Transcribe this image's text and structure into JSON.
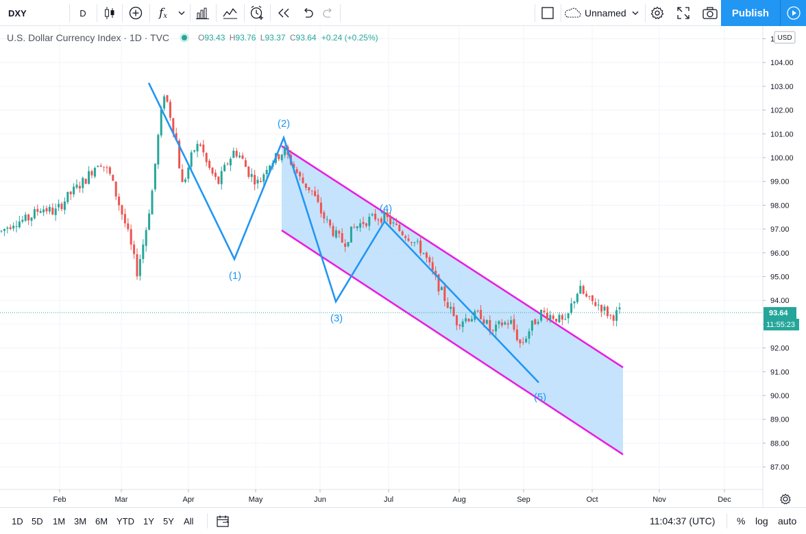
{
  "toolbar": {
    "symbol": "DXY",
    "interval": "D",
    "layout_name": "Unnamed",
    "publish_label": "Publish",
    "icons": [
      "candles-icon",
      "add-compare-icon",
      "indicators-icon",
      "chevron-down-icon",
      "bar-chart-icon",
      "templates-icon",
      "alert-icon",
      "replay-icon",
      "undo-icon",
      "redo-icon",
      "layout-square-icon",
      "cloud-icon",
      "settings-icon",
      "fullscreen-icon",
      "camera-icon",
      "play-icon"
    ]
  },
  "legend": {
    "title": "U.S. Dollar Currency Index · 1D · TVC",
    "open_label": "O",
    "open": "93.43",
    "high_label": "H",
    "high": "93.76",
    "low_label": "L",
    "low": "93.37",
    "close_label": "C",
    "close": "93.64",
    "change": "+0.24 (+0.25%)"
  },
  "price_axis": {
    "currency": "USD",
    "ticks": [
      "105.00",
      "104.00",
      "103.00",
      "102.00",
      "101.00",
      "100.00",
      "99.00",
      "98.00",
      "97.00",
      "96.00",
      "95.00",
      "94.00",
      "93.00",
      "92.00",
      "91.00",
      "90.00",
      "89.00",
      "88.00",
      "87.00"
    ],
    "last_price": "93.64",
    "countdown": "11:55:23"
  },
  "time_axis": {
    "ticks": [
      "Feb",
      "Mar",
      "Apr",
      "May",
      "Jun",
      "Jul",
      "Aug",
      "Sep",
      "Oct",
      "Nov",
      "Dec"
    ]
  },
  "drawings": {
    "wave_labels": [
      "(1)",
      "(2)",
      "(3)",
      "(4)",
      "(5)"
    ],
    "colors": {
      "wave": "#2196f3",
      "channel": "#e91ee0",
      "channel_fill": "#bbdefb",
      "up": "#26a69a",
      "down": "#ef5350"
    }
  },
  "bottom": {
    "ranges": [
      "1D",
      "5D",
      "1M",
      "3M",
      "6M",
      "YTD",
      "1Y",
      "5Y",
      "All"
    ],
    "clock": "11:04:37 (UTC)",
    "percent": "%",
    "log": "log",
    "auto": "auto"
  }
}
